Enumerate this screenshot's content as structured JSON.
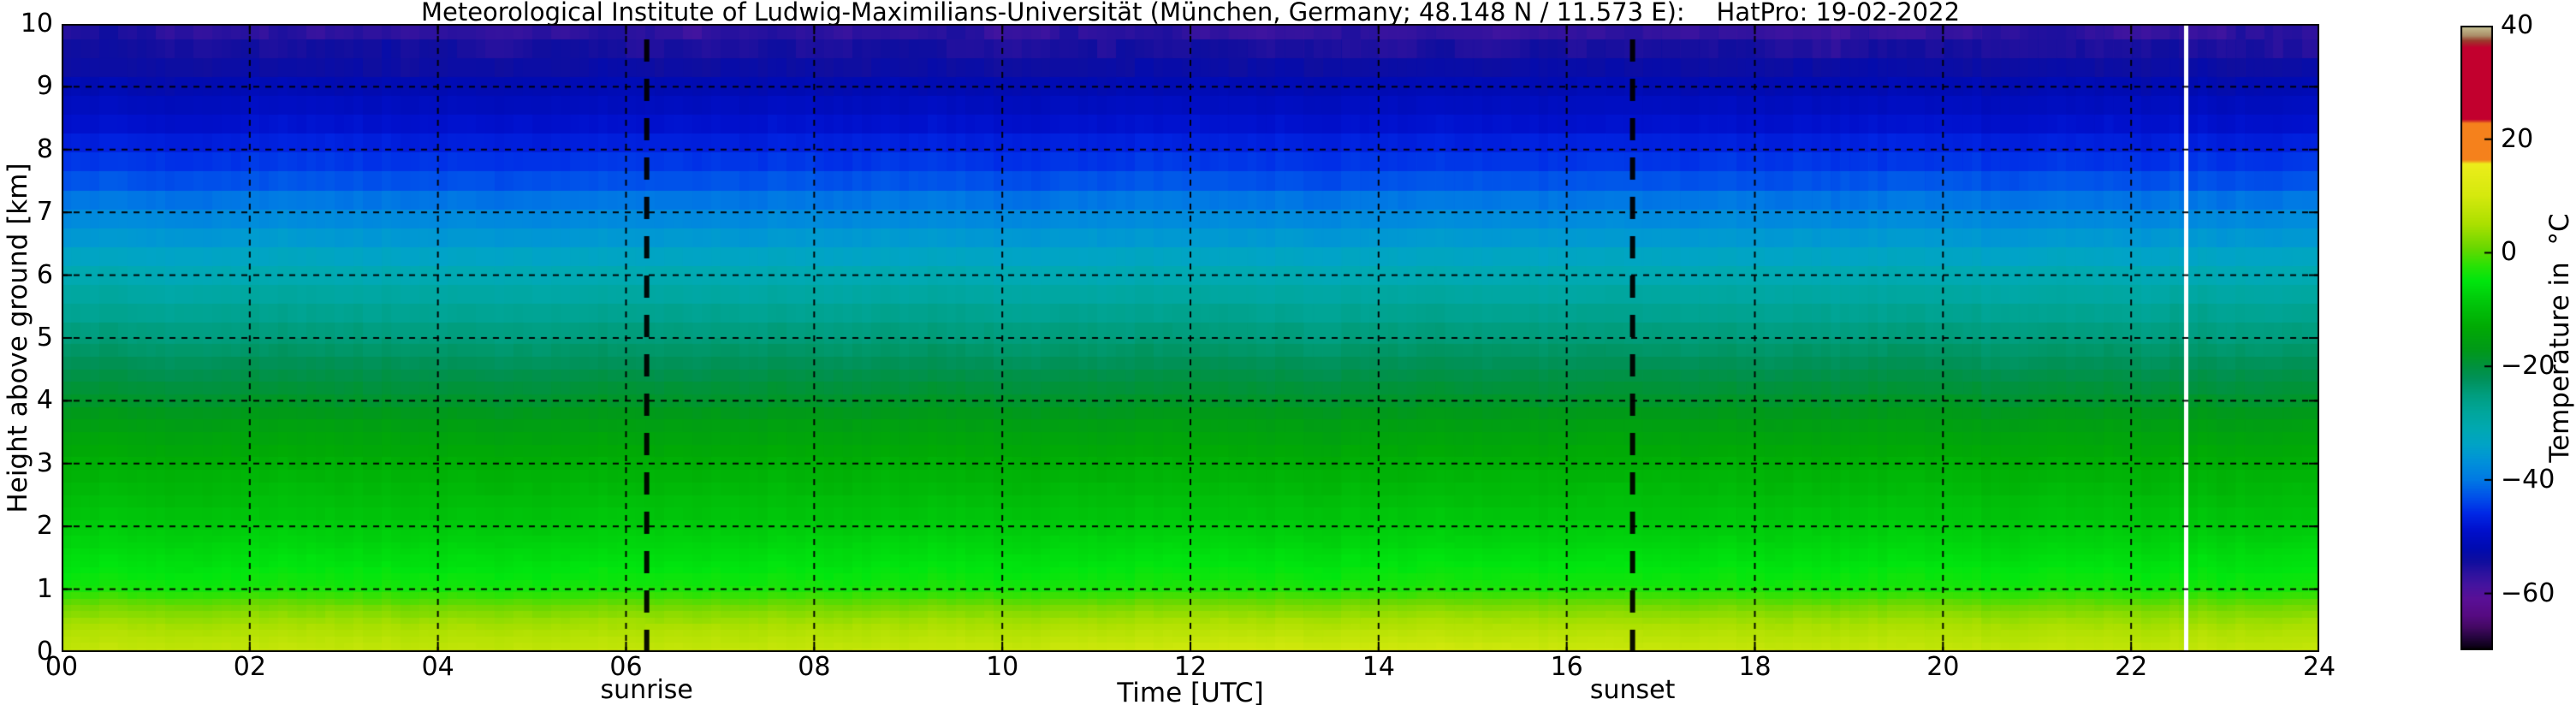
{
  "figure": {
    "title": "Meteorological Institute of Ludwig-Maximilians-Universität (München, Germany; 48.148 N / 11.573 E):    HatPro: 19-02-2022",
    "background_color": "#ffffff"
  },
  "axes": {
    "x": {
      "label": "Time [UTC]",
      "range_hours": [
        0,
        24
      ],
      "tick_values": [
        0,
        2,
        4,
        6,
        8,
        10,
        12,
        14,
        16,
        18,
        20,
        22,
        24
      ],
      "tick_labels": [
        "00",
        "02",
        "04",
        "06",
        "08",
        "10",
        "12",
        "14",
        "16",
        "18",
        "20",
        "22",
        "24"
      ],
      "grid": "black dashed vertical lines every 2 h"
    },
    "y": {
      "label": "Height above ground [km]",
      "range_km": [
        0,
        10
      ],
      "tick_values": [
        0,
        1,
        2,
        3,
        4,
        5,
        6,
        7,
        8,
        9,
        10
      ],
      "tick_labels": [
        "0",
        "1",
        "2",
        "3",
        "4",
        "5",
        "6",
        "7",
        "8",
        "9",
        "10"
      ],
      "grid": "black dashed horizontal lines every 1 km"
    }
  },
  "colorbar": {
    "label": "Temperature in  °C",
    "range_c": [
      -70,
      40
    ],
    "tick_values": [
      40,
      20,
      0,
      -20,
      -40,
      -60
    ],
    "tick_labels": [
      "40",
      "20",
      "0",
      "−20",
      "−40",
      "−60"
    ]
  },
  "annotations": {
    "sunrise": {
      "label": "sunrise",
      "time_utc_hours": 6.22,
      "line_style": "thick black dashed vertical line"
    },
    "sunset": {
      "label": "sunset",
      "time_utc_hours": 16.7,
      "line_style": "thick black dashed vertical line"
    },
    "data_gap": {
      "time_utc_hours": 22.58,
      "style": "thin white vertical stripe (missing data)"
    }
  },
  "chart_data": {
    "type": "heatmap",
    "title": "Meteorological Institute of Ludwig-Maximilians-Universität (München, Germany; 48.148 N / 11.573 E):    HatPro: 19-02-2022",
    "xlabel": "Time [UTC]",
    "ylabel": "Height above ground [km]",
    "value_label": "Temperature in °C",
    "x_range_hours": [
      0,
      24
    ],
    "y_range_km": [
      0,
      10
    ],
    "value_range_c": [
      -70,
      40
    ],
    "temperature_profile": {
      "heights_km": [
        0,
        0.25,
        0.5,
        0.75,
        1,
        1.5,
        2,
        2.5,
        3,
        3.5,
        4,
        4.5,
        5,
        5.5,
        6,
        6.5,
        7,
        7.5,
        8,
        8.5,
        9,
        9.5,
        10
      ],
      "temps_c": [
        8,
        6.2,
        4,
        1,
        -3.5,
        -6,
        -8.5,
        -10.5,
        -12.5,
        -15,
        -18.5,
        -21.5,
        -24.5,
        -27.5,
        -31,
        -35,
        -38.5,
        -43,
        -46.5,
        -49.5,
        -52,
        -55,
        -57.5
      ]
    },
    "time_variation": "nearly constant in time; ±1 °C column noise (stronger, patchy purple above 9 km); slight afternoon warming below 1 km; white data gap near 22.6 UTC",
    "column_resolution_minutes": 6,
    "vertical_banding_km": "≈0.1 below 2 km, ≈0.2 from 2–5 km, ≈0.3 above 5 km",
    "colormap_stops": [
      [
        40,
        "#c9c99a"
      ],
      [
        38.3,
        "#ab8d68"
      ],
      [
        37.4,
        "#9b3a2c"
      ],
      [
        36.2,
        "#c2002e"
      ],
      [
        23.6,
        "#c2002e"
      ],
      [
        22.8,
        "#f5811c"
      ],
      [
        16.4,
        "#f5811c"
      ],
      [
        15.7,
        "#edee1b"
      ],
      [
        10,
        "#d5e90e"
      ],
      [
        5,
        "#abe000"
      ],
      [
        1,
        "#6cd800"
      ],
      [
        -2,
        "#2ee205"
      ],
      [
        -5,
        "#00e60e"
      ],
      [
        -9,
        "#00c50a"
      ],
      [
        -13,
        "#00ab04"
      ],
      [
        -17,
        "#009a18"
      ],
      [
        -20,
        "#00923e"
      ],
      [
        -22,
        "#009156"
      ],
      [
        -25,
        "#009e7f"
      ],
      [
        -28,
        "#00a69b"
      ],
      [
        -31,
        "#00a9b2"
      ],
      [
        -34,
        "#00a3c8"
      ],
      [
        -37,
        "#0090da"
      ],
      [
        -40,
        "#007ae4"
      ],
      [
        -43,
        "#0052ea"
      ],
      [
        -46,
        "#0028e6"
      ],
      [
        -49,
        "#0010cc"
      ],
      [
        -52,
        "#000bb2"
      ],
      [
        -54.5,
        "#100e9e"
      ],
      [
        -56.5,
        "#2d129e"
      ],
      [
        -58.5,
        "#44149f"
      ],
      [
        -61,
        "#5a1097"
      ],
      [
        -64,
        "#560b82"
      ],
      [
        -66,
        "#440964"
      ],
      [
        -68,
        "#23053a"
      ],
      [
        -69.3,
        "#10021c"
      ],
      [
        -70,
        "#000000"
      ]
    ],
    "legend_position": "colorbar right",
    "grid": true
  }
}
